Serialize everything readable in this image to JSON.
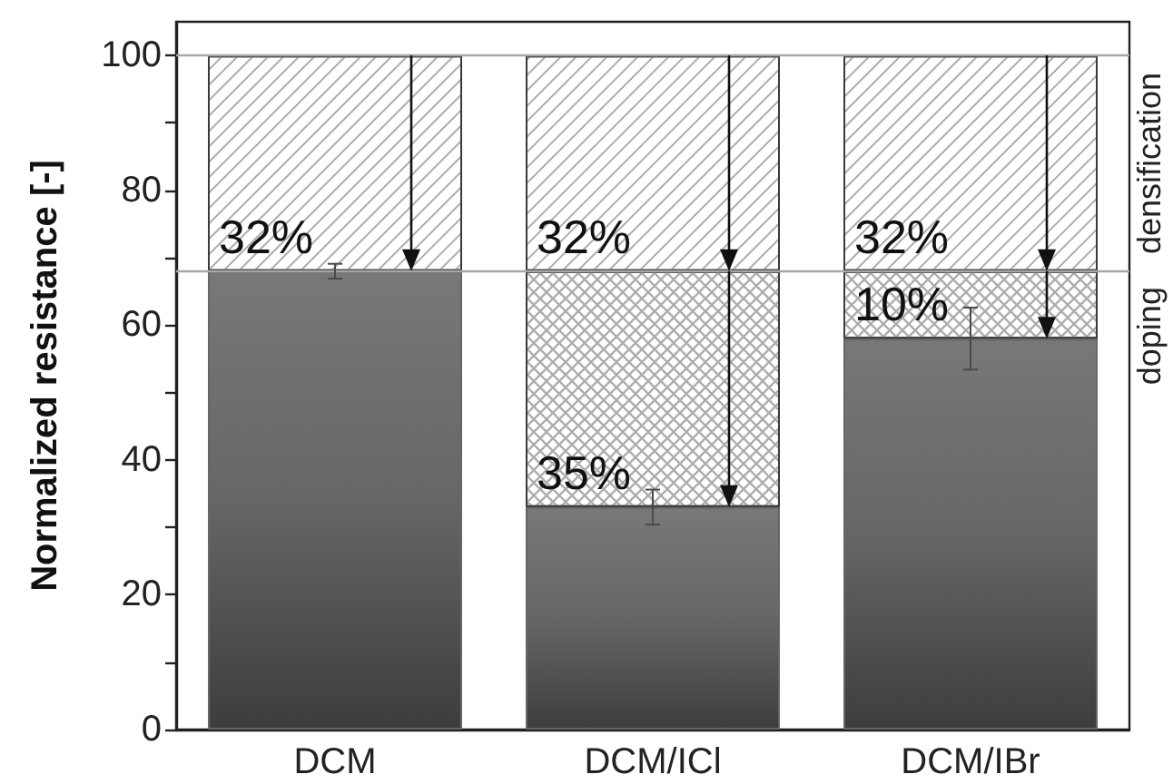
{
  "chart_data": {
    "type": "bar",
    "stacked": true,
    "ylabel": "Normalized resistance [-]",
    "categories": [
      "DCM",
      "DCM/ICl",
      "DCM/IBr"
    ],
    "series": [
      {
        "color": "#666666",
        "values": [
          68,
          33,
          58
        ],
        "errors": [
          1.1,
          2.6,
          4.6
        ]
      },
      {
        "name": "doping",
        "color": "#ffffff",
        "values": [
          null,
          35,
          10
        ],
        "value_labels": [
          null,
          "35%",
          "10%"
        ]
      },
      {
        "name": "densification",
        "color": "#ffffff",
        "values": [
          32,
          32,
          32
        ],
        "value_labels": [
          "32%",
          "32%",
          "32%"
        ]
      }
    ],
    "ylim": [
      0,
      105
    ],
    "yticks": [
      0,
      {
        "value": 10,
        "label": null
      },
      20,
      {
        "value": 30,
        "label": null
      },
      40,
      {
        "value": 50,
        "label": null
      },
      60,
      {
        "value": 70,
        "label": null
      },
      80,
      {
        "value": 90,
        "label": null
      },
      100
    ],
    "ref_lines": [
      {
        "axis": "y",
        "value": 68,
        "color": "#a6a6a6"
      },
      {
        "axis": "y",
        "value": 100,
        "color": "#a6a6a6"
      }
    ],
    "grid": false,
    "legend": false
  }
}
